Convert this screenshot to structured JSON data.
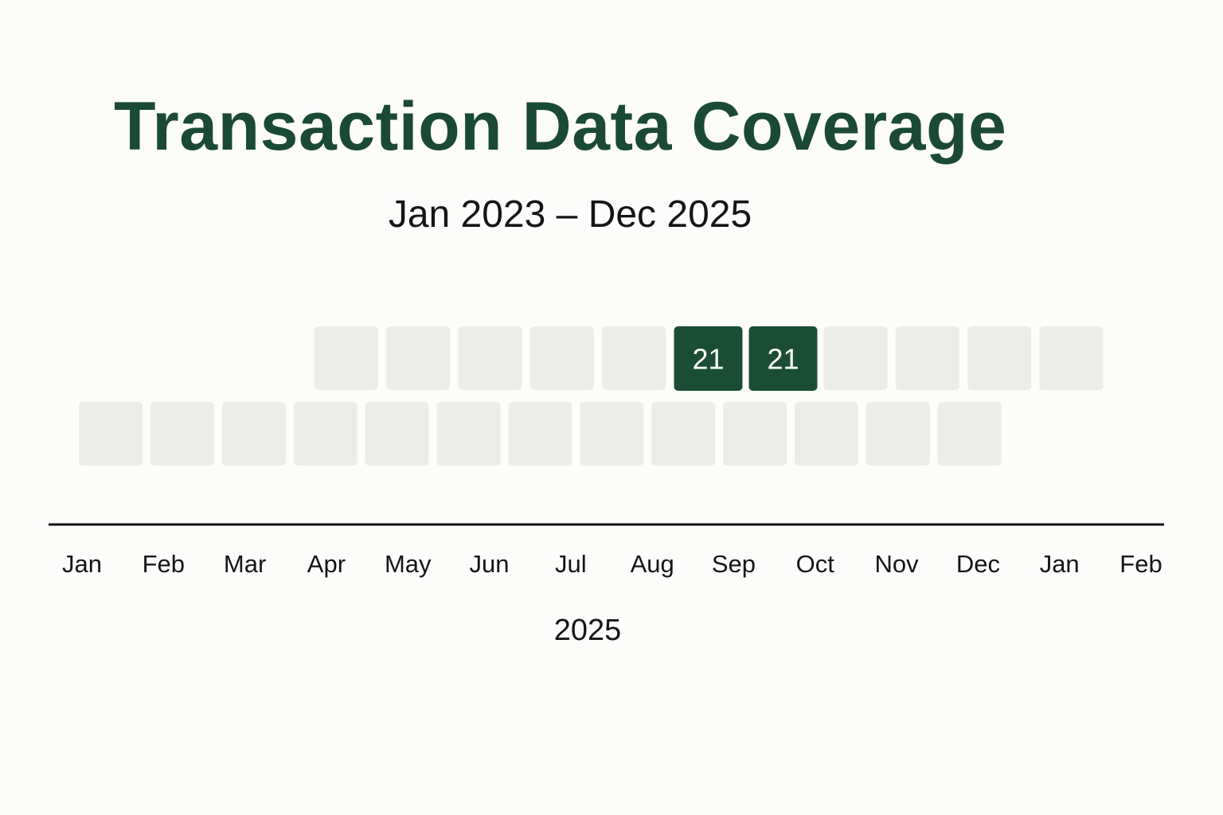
{
  "chart_data": {
    "type": "heatmap",
    "title": "Transaction Data Coverage",
    "subtitle": "Jan 2023 – Dec 2025",
    "xlabel": "2025",
    "x_tick_labels": [
      "Jan",
      "Feb",
      "Mar",
      "Apr",
      "May",
      "Jun",
      "Jul",
      "Aug",
      "Sep",
      "Oct",
      "Nov",
      "Dec",
      "Jan",
      "Feb"
    ],
    "rows": [
      {
        "cells": [
          {
            "value": null
          },
          {
            "value": null
          },
          {
            "value": null
          },
          {
            "value": null
          },
          {
            "value": null
          },
          {
            "value": 21,
            "label": "21"
          },
          {
            "value": 21,
            "label": "21"
          },
          {
            "value": null
          },
          {
            "value": null
          },
          {
            "value": null
          },
          {
            "value": null
          }
        ]
      },
      {
        "cells": [
          {
            "value": null
          },
          {
            "value": null
          },
          {
            "value": null
          },
          {
            "value": null
          },
          {
            "value": null
          },
          {
            "value": null
          },
          {
            "value": null
          },
          {
            "value": null
          },
          {
            "value": null
          },
          {
            "value": null
          },
          {
            "value": null
          },
          {
            "value": null
          },
          {
            "value": null
          }
        ]
      }
    ],
    "colors": {
      "active": "#1b4d35",
      "empty": "#ececea",
      "active_text": "#ffffff",
      "title": "#1a4a33",
      "axis": "#111111"
    }
  }
}
